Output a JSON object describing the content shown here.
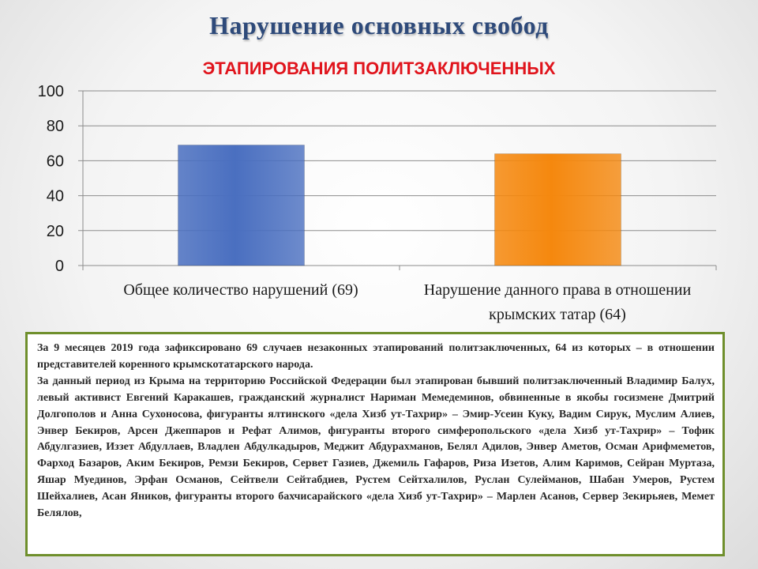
{
  "chart_data": {
    "type": "bar",
    "title": "Нарушение основных свобод",
    "subtitle": "ЭТАПИРОВАНИЯ ПОЛИТЗАКЛЮЧЕННЫХ",
    "categories": [
      "Общее количество нарушений (69)",
      "Нарушение данного права в отношении крымских татар (64)"
    ],
    "values": [
      69,
      64
    ],
    "colors": [
      "#4a6fc0",
      "#f5880e"
    ],
    "ylim": [
      0,
      100
    ],
    "yticks": [
      "0",
      "20",
      "40",
      "60",
      "80",
      "100"
    ],
    "grid": true,
    "legend": "none"
  },
  "note": {
    "paragraphs": [
      "За 9 месяцев 2019 года зафиксировано 69 случаев незаконных этапирований политзаключенных, 64 из которых – в отношении представителей коренного крымскотатарского народа.",
      "За данный период из Крыма на территорию Российской Федерации был этапирован бывший политзаключенный Владимир Балух, левый активист Евгений Каракашев, гражданский журналист Нариман Мемедеминов, обвиненные в якобы госизмене Дмитрий Долгополов и Анна Сухоносова, фигуранты ялтинского «дела Хизб ут-Тахрир» – Эмир-Усеин Куку, Вадим Сирук, Муслим Алиев, Энвер Бекиров, Арсен Джеппаров и Рефат Алимов, фигуранты второго симферопольского «дела Хизб ут-Тахрир» – Тофик Абдулгазиев, Иззет Абдуллаев, Владлен Абдулкадыров, Меджит Абдурахманов, Белял Адилов, Энвер Аметов, Осман Арифмеметов, Фарход Базаров, Аким Бекиров, Ремзи Бекиров, Сервет Газиев, Джемиль Гафаров, Риза Изетов, Алим Каримов, Сейран Муртаза, Яшар Муединов, Эрфан Османов, Сейтвели Сейтабдиев, Рустем Сейтхалилов, Руслан Сулейманов, Шабан Умеров, Рустем Шейхалиев, Асан Яников, фигуранты второго бахчисарайского «дела Хизб ут-Тахрир» – Марлен Асанов, Сервер Зекирьяев, Мемет Белялов,"
    ]
  }
}
